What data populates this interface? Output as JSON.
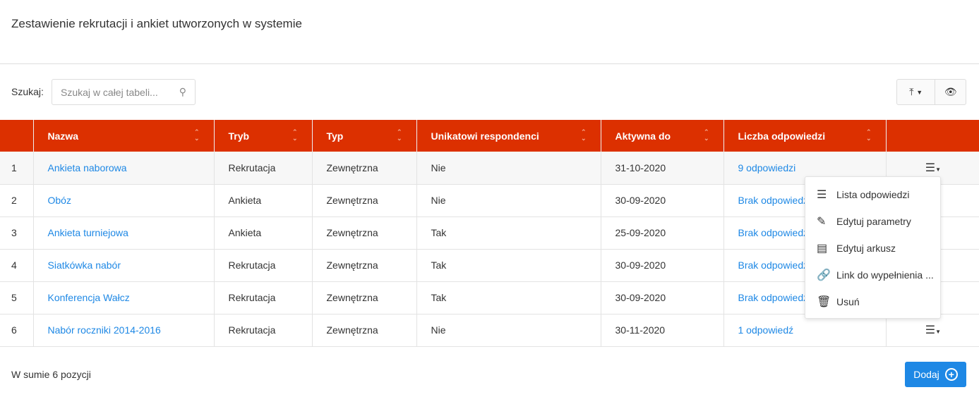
{
  "page": {
    "title": "Zestawienie rekrutacji i ankiet utworzonych w systemie"
  },
  "search": {
    "label": "Szukaj:",
    "placeholder": "Szukaj w całej tabeli..."
  },
  "toolbar": {
    "export_icon": "upload-tray-icon",
    "view_icon": "eye-icon"
  },
  "table": {
    "headers": [
      "",
      "Nazwa",
      "Tryb",
      "Typ",
      "Unikatowi respondenci",
      "Aktywna do",
      "Liczba odpowiedzi",
      ""
    ],
    "rows": [
      {
        "n": "1",
        "name": "Ankieta naborowa",
        "mode": "Rekrutacja",
        "type": "Zewnętrzna",
        "unique": "Nie",
        "until": "31-10-2020",
        "answers": "9 odpowiedzi"
      },
      {
        "n": "2",
        "name": "Obóz",
        "mode": "Ankieta",
        "type": "Zewnętrzna",
        "unique": "Nie",
        "until": "30-09-2020",
        "answers": "Brak odpowiedzi"
      },
      {
        "n": "3",
        "name": "Ankieta turniejowa",
        "mode": "Ankieta",
        "type": "Zewnętrzna",
        "unique": "Tak",
        "until": "25-09-2020",
        "answers": "Brak odpowiedzi"
      },
      {
        "n": "4",
        "name": "Siatkówka nabór",
        "mode": "Rekrutacja",
        "type": "Zewnętrzna",
        "unique": "Tak",
        "until": "30-09-2020",
        "answers": "Brak odpowiedzi"
      },
      {
        "n": "5",
        "name": "Konferencja Wałcz",
        "mode": "Rekrutacja",
        "type": "Zewnętrzna",
        "unique": "Tak",
        "until": "30-09-2020",
        "answers": "Brak odpowiedzi"
      },
      {
        "n": "6",
        "name": "Nabór roczniki 2014-2016",
        "mode": "Rekrutacja",
        "type": "Zewnętrzna",
        "unique": "Nie",
        "until": "30-11-2020",
        "answers": "1 odpowiedź"
      }
    ]
  },
  "menu": {
    "items": [
      {
        "label": "Lista odpowiedzi",
        "icon": "list-icon"
      },
      {
        "label": "Edytuj parametry",
        "icon": "edit-icon"
      },
      {
        "label": "Edytuj arkusz",
        "icon": "sheet-icon"
      },
      {
        "label": "Link do wypełnienia ...",
        "icon": "link-icon"
      },
      {
        "label": "Usuń",
        "icon": "trash-icon"
      }
    ]
  },
  "footer": {
    "summary": "W sumie 6 pozycji",
    "add_label": "Dodaj"
  },
  "colors": {
    "header": "#dc3000",
    "link": "#1e88e5",
    "button": "#1e88e5"
  }
}
